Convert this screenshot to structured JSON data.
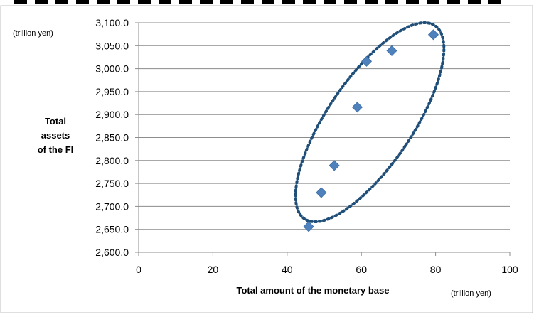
{
  "chart_data": {
    "type": "scatter",
    "title": "",
    "xlabel": "Total amount of the monetary base",
    "x_unit": "(trillion yen)",
    "ylabel_lines": [
      "Total",
      "assets",
      "of the FI"
    ],
    "y_unit": "(trillion yen)",
    "xlim": [
      0,
      100
    ],
    "ylim": [
      2600,
      3100
    ],
    "x_ticks": [
      0,
      20,
      40,
      60,
      80,
      100
    ],
    "x_tick_labels": [
      "0",
      "20",
      "40",
      "60",
      "80",
      "100"
    ],
    "y_ticks": [
      2600,
      2650,
      2700,
      2750,
      2800,
      2850,
      2900,
      2950,
      3000,
      3050,
      3100
    ],
    "y_tick_labels": [
      "2,600.0",
      "2,650.0",
      "2,700.0",
      "2,750.0",
      "2,800.0",
      "2,850.0",
      "2,900.0",
      "2,950.0",
      "3,000.0",
      "3,050.0",
      "3,100.0"
    ],
    "grid": "horizontal",
    "marker_color": "#4f81bd",
    "ellipse_color": "#1f4e79",
    "points": [
      {
        "x": 45.8,
        "y": 2656
      },
      {
        "x": 49.2,
        "y": 2730
      },
      {
        "x": 52.7,
        "y": 2789
      },
      {
        "x": 58.9,
        "y": 2916
      },
      {
        "x": 61.4,
        "y": 3016
      },
      {
        "x": 68.2,
        "y": 3039
      },
      {
        "x": 79.4,
        "y": 3074
      }
    ]
  }
}
